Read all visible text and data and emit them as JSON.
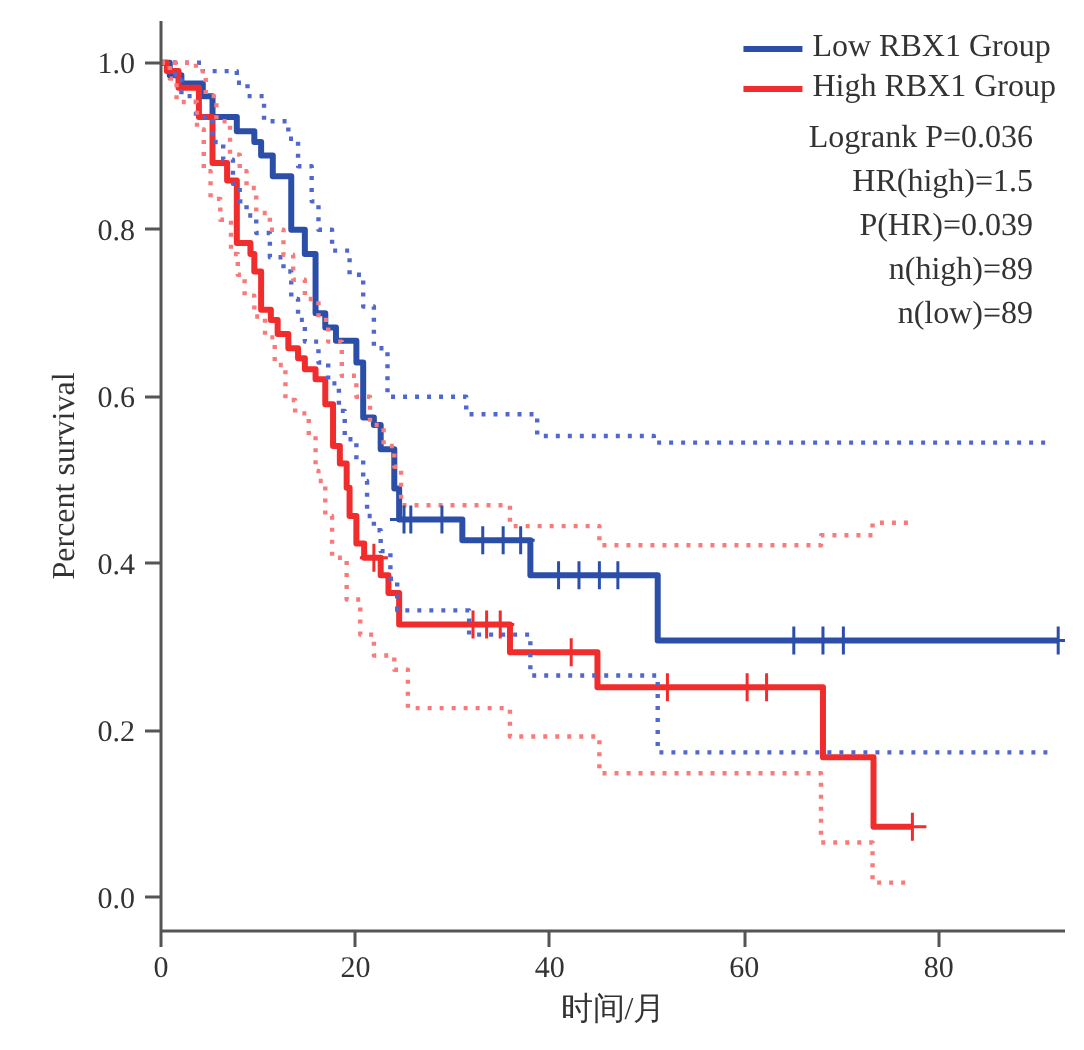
{
  "chart_data": {
    "type": "step",
    "xlabel": "时间/月",
    "ylabel": "Percent survival",
    "xlim": [
      0,
      93
    ],
    "ylim": [
      -0.04,
      1.05
    ],
    "xticks": [
      0,
      20,
      40,
      60,
      80
    ],
    "yticks": [
      {
        "value": 0,
        "label": "0.0"
      },
      {
        "value": 0.2,
        "label": "0.2"
      },
      {
        "value": 0.4,
        "label": "0.4"
      },
      {
        "value": 0.6,
        "label": "0.6"
      },
      {
        "value": 0.8,
        "label": "0.8"
      },
      {
        "value": 1,
        "label": "1.0"
      }
    ],
    "grid": false,
    "legend": "top right",
    "annotations": [
      "Logrank P=0.036",
      "HR(high)=1.5",
      "P(HR)=0.039",
      "n(high)=89",
      "n(low)=89"
    ],
    "series": [
      {
        "name": "Low RBX1 Group",
        "color": "#2b4fa8",
        "line_style": "solid",
        "x": [
          0,
          0.9,
          2.1,
          4.3,
          5.3,
          7.8,
          9.6,
          10.3,
          11.5,
          13.4,
          14.8,
          15.9,
          16.9,
          18.0,
          20.1,
          20.8,
          21.9,
          22.6,
          24.0,
          24.5,
          31.0,
          38.0,
          51.1,
          92.3
        ],
        "values": [
          1.0,
          0.985,
          0.975,
          0.96,
          0.935,
          0.918,
          0.905,
          0.889,
          0.864,
          0.8,
          0.771,
          0.7,
          0.683,
          0.667,
          0.641,
          0.575,
          0.566,
          0.537,
          0.49,
          0.453,
          0.428,
          0.386,
          0.308,
          0.308
        ]
      },
      {
        "name": "High RBX1 Group",
        "color": "#f02c2c",
        "line_style": "solid",
        "x": [
          0,
          0.6,
          1.8,
          3.9,
          5.3,
          6.8,
          7.8,
          9.2,
          9.6,
          10.3,
          11.3,
          12.0,
          13.1,
          14.1,
          14.8,
          15.9,
          16.9,
          17.7,
          18.4,
          19.1,
          19.4,
          20.1,
          20.9,
          22.6,
          23.4,
          24.5,
          35.9,
          44.9,
          68.1,
          73.3,
          77.3
        ],
        "values": [
          1.0,
          0.99,
          0.97,
          0.935,
          0.88,
          0.859,
          0.784,
          0.771,
          0.75,
          0.704,
          0.692,
          0.675,
          0.658,
          0.646,
          0.633,
          0.621,
          0.591,
          0.541,
          0.52,
          0.491,
          0.457,
          0.424,
          0.407,
          0.386,
          0.365,
          0.327,
          0.294,
          0.252,
          0.168,
          0.085,
          0.085
        ]
      },
      {
        "color": "#5068cc",
        "line_style": "dotted",
        "x": [
          0,
          4.3,
          7.8,
          8.9,
          10.6,
          13.1,
          14.1,
          15.5,
          16.2,
          17.6,
          19.4,
          20.8,
          21.9,
          23.3,
          31.4,
          38.7,
          50.7,
          91.5
        ],
        "values": [
          1.0,
          0.99,
          0.976,
          0.96,
          0.93,
          0.909,
          0.876,
          0.834,
          0.8,
          0.775,
          0.746,
          0.708,
          0.658,
          0.6,
          0.579,
          0.553,
          0.545,
          0.545
        ]
      },
      {
        "color": "#5068cc",
        "line_style": "dotted",
        "x": [
          0,
          1.5,
          2.1,
          3.6,
          5.3,
          6.4,
          7.4,
          8.1,
          8.8,
          9.8,
          11.2,
          12.6,
          13.4,
          14.1,
          14.8,
          16.2,
          17.2,
          18.3,
          18.9,
          20.1,
          20.8,
          21.2,
          21.9,
          22.6,
          23.6,
          24.3,
          31.7,
          38.0,
          51.1,
          91.5
        ],
        "values": [
          1.0,
          0.985,
          0.96,
          0.935,
          0.905,
          0.884,
          0.855,
          0.834,
          0.817,
          0.796,
          0.767,
          0.75,
          0.717,
          0.692,
          0.666,
          0.641,
          0.616,
          0.583,
          0.549,
          0.524,
          0.499,
          0.457,
          0.44,
          0.415,
          0.382,
          0.344,
          0.315,
          0.266,
          0.174,
          0.174
        ]
      },
      {
        "color": "#f87a7a",
        "line_style": "dotted",
        "x": [
          0,
          3.6,
          4.6,
          5.7,
          7.1,
          8.1,
          8.8,
          9.8,
          11.2,
          12.6,
          13.6,
          14.8,
          16.2,
          17.2,
          18.6,
          20.1,
          21.5,
          22.9,
          24.0,
          24.7,
          35.9,
          45.1,
          67.9,
          73.2,
          77.1
        ],
        "values": [
          1.0,
          0.99,
          0.96,
          0.93,
          0.89,
          0.87,
          0.85,
          0.82,
          0.8,
          0.77,
          0.74,
          0.717,
          0.692,
          0.666,
          0.625,
          0.6,
          0.566,
          0.541,
          0.516,
          0.47,
          0.445,
          0.422,
          0.434,
          0.449,
          0.449
        ]
      },
      {
        "color": "#f87a7a",
        "line_style": "dotted",
        "x": [
          0,
          0.9,
          1.6,
          3.7,
          4.4,
          5.1,
          6.1,
          7.2,
          7.9,
          8.6,
          9.6,
          10.7,
          11.7,
          12.8,
          13.8,
          15.2,
          15.9,
          16.2,
          16.9,
          17.6,
          19.1,
          20.5,
          21.9,
          24.0,
          25.4,
          35.9,
          45.1,
          67.9,
          73.2,
          77.1
        ],
        "values": [
          1.0,
          0.981,
          0.953,
          0.92,
          0.87,
          0.837,
          0.812,
          0.771,
          0.746,
          0.721,
          0.696,
          0.671,
          0.638,
          0.596,
          0.58,
          0.553,
          0.511,
          0.499,
          0.457,
          0.407,
          0.357,
          0.315,
          0.29,
          0.273,
          0.227,
          0.193,
          0.149,
          0.066,
          0.018,
          0.018
        ]
      },
      {
        "type": "scatter",
        "marker": "cross",
        "color": "#2b4fa8",
        "x": [
          25.0,
          25.7,
          28.9,
          33.1,
          35.2,
          37.0,
          40.9,
          43.0,
          45.1,
          47.0,
          65.1,
          68.1,
          70.2,
          92.3
        ],
        "values": [
          0.453,
          0.453,
          0.453,
          0.428,
          0.428,
          0.428,
          0.386,
          0.386,
          0.386,
          0.386,
          0.308,
          0.308,
          0.308,
          0.308
        ]
      },
      {
        "type": "scatter",
        "marker": "cross",
        "color": "#f02c2c",
        "x": [
          21.9,
          32.1,
          33.5,
          34.9,
          42.2,
          52.1,
          60.3,
          62.3,
          77.3
        ],
        "values": [
          0.407,
          0.327,
          0.327,
          0.327,
          0.294,
          0.252,
          0.252,
          0.252,
          0.085
        ]
      }
    ]
  }
}
